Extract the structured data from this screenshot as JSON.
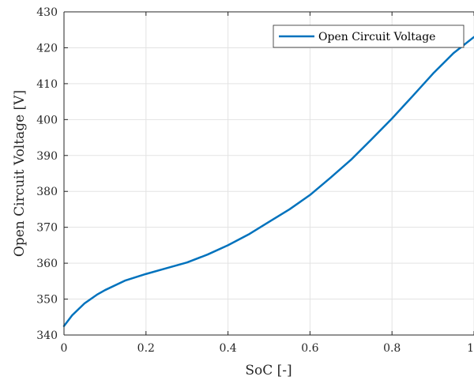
{
  "chart_data": {
    "type": "line",
    "title": "",
    "xlabel": "SoC [-]",
    "ylabel": "Open Circuit Voltage [V]",
    "xlim": [
      0,
      1
    ],
    "ylim": [
      340,
      430
    ],
    "x_ticks": [
      0,
      0.2,
      0.4,
      0.6,
      0.8,
      1
    ],
    "x_tick_labels": [
      "0",
      "0.2",
      "0.4",
      "0.6",
      "0.8",
      "1"
    ],
    "y_ticks": [
      340,
      350,
      360,
      370,
      380,
      390,
      400,
      410,
      420,
      430
    ],
    "y_tick_labels": [
      "340",
      "350",
      "360",
      "370",
      "380",
      "390",
      "400",
      "410",
      "420",
      "430"
    ],
    "grid": true,
    "legend_position": "top-right",
    "series": [
      {
        "name": "Open Circuit Voltage",
        "color": "#0072BD",
        "x": [
          0,
          0.02,
          0.05,
          0.08,
          0.1,
          0.15,
          0.2,
          0.25,
          0.3,
          0.35,
          0.4,
          0.45,
          0.5,
          0.55,
          0.6,
          0.65,
          0.7,
          0.75,
          0.8,
          0.85,
          0.9,
          0.95,
          1.0
        ],
        "y": [
          342.5,
          345.5,
          348.8,
          351.2,
          352.5,
          355.2,
          357.0,
          358.6,
          360.2,
          362.4,
          365.0,
          368.0,
          371.5,
          375.0,
          379.0,
          383.8,
          388.8,
          394.5,
          400.3,
          406.5,
          412.8,
          418.5,
          423.0
        ]
      }
    ]
  }
}
